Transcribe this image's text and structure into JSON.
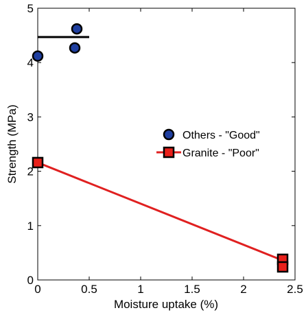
{
  "chart_data": {
    "type": "scatter",
    "xlabel": "Moisture uptake (%)",
    "ylabel": "Strength (MPa)",
    "xlim": [
      0,
      2.5
    ],
    "ylim": [
      0,
      5
    ],
    "xticks": [
      "0",
      "0.5",
      "1",
      "1.5",
      "2",
      "2.5"
    ],
    "yticks": [
      "0",
      "1",
      "2",
      "3",
      "4",
      "5"
    ],
    "grid": false,
    "legend_position": "right",
    "series": [
      {
        "name": "Others - \"Good\"",
        "marker": "circle",
        "color": "#1f3fa0",
        "points": [
          {
            "x": 0.0,
            "y": 4.12
          },
          {
            "x": 0.36,
            "y": 4.27
          },
          {
            "x": 0.38,
            "y": 4.62
          }
        ],
        "mean_line": {
          "x": [
            0.0,
            0.5
          ],
          "y": 4.47,
          "color": "#000000"
        }
      },
      {
        "name": "Granite - \"Poor\"",
        "marker": "square",
        "color": "#e8201a",
        "points": [
          {
            "x": 0.0,
            "y": 2.16
          },
          {
            "x": 2.38,
            "y": 0.38
          },
          {
            "x": 2.38,
            "y": 0.24
          }
        ],
        "fit_line": {
          "x": [
            0.0,
            2.38
          ],
          "y": [
            2.16,
            0.36
          ],
          "color": "#e02020"
        }
      }
    ]
  }
}
